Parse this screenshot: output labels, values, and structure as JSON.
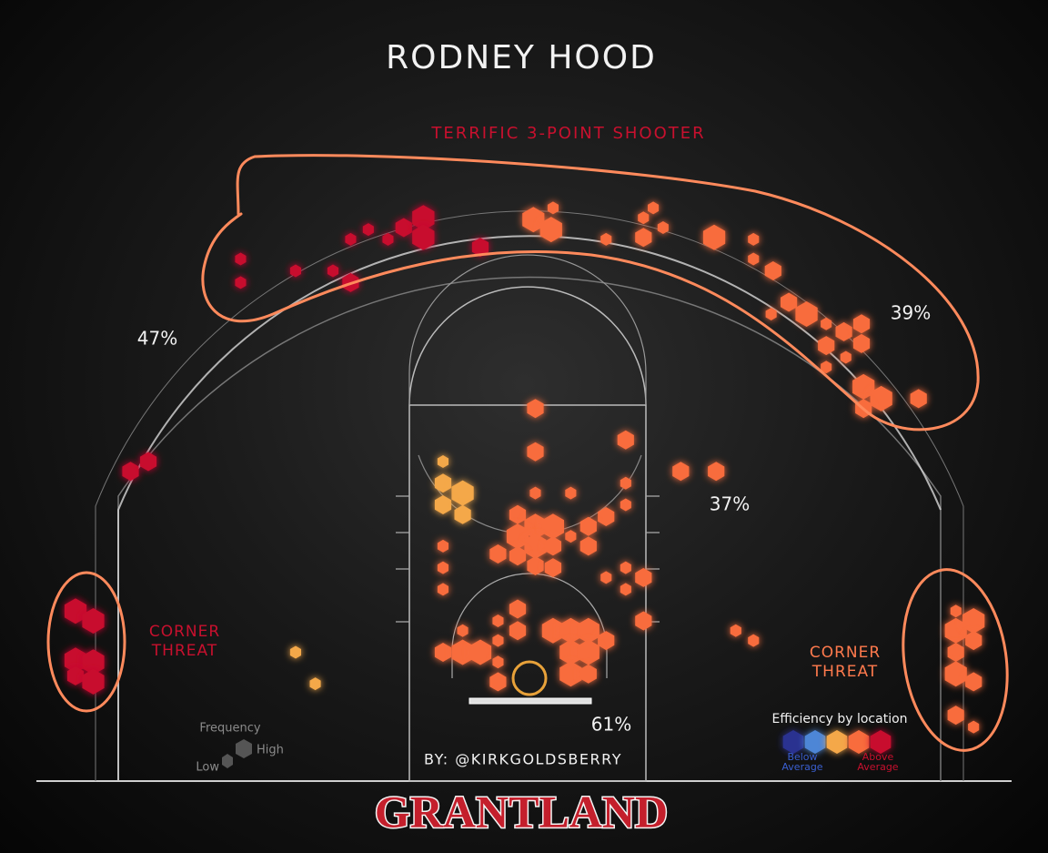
{
  "chart_data": {
    "type": "hexbin",
    "title": "RODNEY HOOD",
    "subtitle": {
      "text": "TERRIFIC 3-POINT SHOOTER",
      "color": "#c8102e"
    },
    "annotations": [
      {
        "text": "CORNER THREAT",
        "color": "#c8102e"
      },
      {
        "text": "CORNER THREAT",
        "color": "#ff7a4d"
      }
    ],
    "zones": {
      "values": [
        47,
        39,
        37,
        61
      ],
      "value_labels": [
        "47%",
        "39%",
        "37%",
        "61%"
      ]
    },
    "byline": "BY: @KIRKGOLDSBERRY",
    "brand": "GRANTLAND",
    "xlim": [
      -25,
      25
    ],
    "ylim": [
      -5.25,
      30
    ],
    "efficiency_legend": {
      "title": "Efficiency by location",
      "low": "Below Average",
      "high": "Above Average",
      "colors": [
        "#2c3190",
        "#4d86d6",
        "#f4a84a",
        "#f86c3c",
        "#c8102e"
      ]
    },
    "frequency_legend": {
      "title": "Frequency",
      "low": "Low",
      "high": "High"
    },
    "hexes": [
      {
        "x": -14.7,
        "y": 21.3,
        "size": 1,
        "level": 4
      },
      {
        "x": -14.7,
        "y": 20.1,
        "size": 1,
        "level": 4
      },
      {
        "x": -11.9,
        "y": 20.7,
        "size": 1,
        "level": 4
      },
      {
        "x": -10,
        "y": 20.7,
        "size": 1,
        "level": 4
      },
      {
        "x": -9.1,
        "y": 20.1,
        "size": 2,
        "level": 4
      },
      {
        "x": -9.1,
        "y": 22.3,
        "size": 1,
        "level": 4
      },
      {
        "x": -8.2,
        "y": 22.8,
        "size": 1,
        "level": 4
      },
      {
        "x": -7.2,
        "y": 22.3,
        "size": 1,
        "level": 4
      },
      {
        "x": -6.4,
        "y": 22.9,
        "size": 2,
        "level": 4
      },
      {
        "x": -5.4,
        "y": 23.4,
        "size": 3,
        "level": 4
      },
      {
        "x": -5.4,
        "y": 22.4,
        "size": 3,
        "level": 4
      },
      {
        "x": -2.5,
        "y": 21.9,
        "size": 2,
        "level": 4
      },
      {
        "x": -20.3,
        "y": 10.5,
        "size": 2,
        "level": 4
      },
      {
        "x": -19.4,
        "y": 11,
        "size": 2,
        "level": 4
      },
      {
        "x": -23.1,
        "y": 3.4,
        "size": 3,
        "level": 4
      },
      {
        "x": -22.2,
        "y": 2.9,
        "size": 3,
        "level": 4
      },
      {
        "x": -23.1,
        "y": 0.9,
        "size": 3,
        "level": 4
      },
      {
        "x": -22.2,
        "y": 0.8,
        "size": 3,
        "level": 4
      },
      {
        "x": -23.1,
        "y": 0.1,
        "size": 2,
        "level": 4
      },
      {
        "x": -22.2,
        "y": -0.2,
        "size": 3,
        "level": 4
      },
      {
        "x": 0.2,
        "y": 23.3,
        "size": 3,
        "level": 3
      },
      {
        "x": 1.1,
        "y": 22.8,
        "size": 3,
        "level": 3
      },
      {
        "x": 1.2,
        "y": 23.9,
        "size": 1,
        "level": 3
      },
      {
        "x": 3.9,
        "y": 22.3,
        "size": 1,
        "level": 3
      },
      {
        "x": 5.8,
        "y": 23.4,
        "size": 1,
        "level": 3
      },
      {
        "x": 6.3,
        "y": 23.9,
        "size": 1,
        "level": 3
      },
      {
        "x": 6.8,
        "y": 22.9,
        "size": 1,
        "level": 3
      },
      {
        "x": 5.8,
        "y": 22.4,
        "size": 2,
        "level": 3
      },
      {
        "x": 9.4,
        "y": 22.4,
        "size": 3,
        "level": 3
      },
      {
        "x": 11.4,
        "y": 22.3,
        "size": 1,
        "level": 3
      },
      {
        "x": 11.4,
        "y": 21.3,
        "size": 1,
        "level": 3
      },
      {
        "x": 12.4,
        "y": 20.7,
        "size": 2,
        "level": 3
      },
      {
        "x": 12.3,
        "y": 18.5,
        "size": 1,
        "level": 3
      },
      {
        "x": 13.2,
        "y": 19.1,
        "size": 2,
        "level": 3
      },
      {
        "x": 14.1,
        "y": 18.5,
        "size": 3,
        "level": 3
      },
      {
        "x": 15.1,
        "y": 18,
        "size": 1,
        "level": 3
      },
      {
        "x": 16,
        "y": 17.6,
        "size": 2,
        "level": 3
      },
      {
        "x": 16.9,
        "y": 18,
        "size": 2,
        "level": 3
      },
      {
        "x": 15.1,
        "y": 16.9,
        "size": 2,
        "level": 3
      },
      {
        "x": 16.9,
        "y": 17,
        "size": 2,
        "level": 3
      },
      {
        "x": 16.1,
        "y": 16.3,
        "size": 1,
        "level": 3
      },
      {
        "x": 15.1,
        "y": 15.8,
        "size": 1,
        "level": 3
      },
      {
        "x": 17,
        "y": 14.8,
        "size": 3,
        "level": 3
      },
      {
        "x": 17.9,
        "y": 14.2,
        "size": 3,
        "level": 3
      },
      {
        "x": 17,
        "y": 13.7,
        "size": 2,
        "level": 3
      },
      {
        "x": 19.8,
        "y": 14.2,
        "size": 2,
        "level": 3
      },
      {
        "x": 0.3,
        "y": 13.7,
        "size": 2,
        "level": 3
      },
      {
        "x": 4.9,
        "y": 12.1,
        "size": 2,
        "level": 3
      },
      {
        "x": 0.3,
        "y": 11.5,
        "size": 2,
        "level": 3
      },
      {
        "x": 7.7,
        "y": 10.5,
        "size": 2,
        "level": 3
      },
      {
        "x": 9.5,
        "y": 10.5,
        "size": 2,
        "level": 3
      },
      {
        "x": 0.3,
        "y": 9.4,
        "size": 1,
        "level": 3
      },
      {
        "x": 4.9,
        "y": 9.9,
        "size": 1,
        "level": 3
      },
      {
        "x": 2.1,
        "y": 9.4,
        "size": 1,
        "level": 3
      },
      {
        "x": 4.9,
        "y": 8.8,
        "size": 1,
        "level": 3
      },
      {
        "x": 3.9,
        "y": 8.2,
        "size": 2,
        "level": 3
      },
      {
        "x": 3,
        "y": 7.7,
        "size": 2,
        "level": 3
      },
      {
        "x": 2.1,
        "y": 7.2,
        "size": 1,
        "level": 3
      },
      {
        "x": 3,
        "y": 6.7,
        "size": 2,
        "level": 3
      },
      {
        "x": -0.6,
        "y": 8.3,
        "size": 2,
        "level": 3
      },
      {
        "x": 0.3,
        "y": 7.7,
        "size": 3,
        "level": 3
      },
      {
        "x": 1.2,
        "y": 7.7,
        "size": 3,
        "level": 3
      },
      {
        "x": -0.6,
        "y": 7.2,
        "size": 3,
        "level": 3
      },
      {
        "x": 0.3,
        "y": 6.7,
        "size": 3,
        "level": 3
      },
      {
        "x": 1.2,
        "y": 6.7,
        "size": 2,
        "level": 3
      },
      {
        "x": -1.6,
        "y": 6.3,
        "size": 2,
        "level": 3
      },
      {
        "x": -0.6,
        "y": 6.2,
        "size": 2,
        "level": 3
      },
      {
        "x": 0.3,
        "y": 5.7,
        "size": 2,
        "level": 3
      },
      {
        "x": 1.2,
        "y": 5.6,
        "size": 2,
        "level": 3
      },
      {
        "x": -4.4,
        "y": 6.7,
        "size": 1,
        "level": 3
      },
      {
        "x": -4.4,
        "y": 5.6,
        "size": 1,
        "level": 3
      },
      {
        "x": -4.4,
        "y": 4.5,
        "size": 1,
        "level": 3
      },
      {
        "x": 4.9,
        "y": 5.6,
        "size": 1,
        "level": 3
      },
      {
        "x": 3.9,
        "y": 5.1,
        "size": 1,
        "level": 3
      },
      {
        "x": 5.8,
        "y": 5.1,
        "size": 2,
        "level": 3
      },
      {
        "x": 4.9,
        "y": 4.5,
        "size": 1,
        "level": 3
      },
      {
        "x": 5.8,
        "y": 2.9,
        "size": 2,
        "level": 3
      },
      {
        "x": 10.5,
        "y": 2.4,
        "size": 1,
        "level": 3
      },
      {
        "x": 11.4,
        "y": 1.9,
        "size": 1,
        "level": 3
      },
      {
        "x": -4.4,
        "y": 11,
        "size": 1,
        "level": 2
      },
      {
        "x": -4.4,
        "y": 9.9,
        "size": 2,
        "level": 2
      },
      {
        "x": -3.4,
        "y": 9.4,
        "size": 3,
        "level": 2
      },
      {
        "x": -4.4,
        "y": 8.8,
        "size": 2,
        "level": 2
      },
      {
        "x": -3.4,
        "y": 8.3,
        "size": 2,
        "level": 2
      },
      {
        "x": -11.9,
        "y": 1.3,
        "size": 1,
        "level": 2
      },
      {
        "x": -10.9,
        "y": -0.3,
        "size": 1,
        "level": 2
      },
      {
        "x": -0.6,
        "y": 3.5,
        "size": 2,
        "level": 3
      },
      {
        "x": -1.6,
        "y": 2.9,
        "size": 1,
        "level": 3
      },
      {
        "x": -0.6,
        "y": 2.4,
        "size": 2,
        "level": 3
      },
      {
        "x": 1.2,
        "y": 2.4,
        "size": 3,
        "level": 3
      },
      {
        "x": 2.1,
        "y": 2.4,
        "size": 3,
        "level": 3
      },
      {
        "x": 3,
        "y": 2.4,
        "size": 3,
        "level": 3
      },
      {
        "x": 3.9,
        "y": 1.9,
        "size": 2,
        "level": 3
      },
      {
        "x": -4.4,
        "y": 1.3,
        "size": 2,
        "level": 3
      },
      {
        "x": -3.4,
        "y": 1.3,
        "size": 3,
        "level": 3
      },
      {
        "x": -2.5,
        "y": 1.3,
        "size": 3,
        "level": 3
      },
      {
        "x": -1.6,
        "y": 1.9,
        "size": 1,
        "level": 3
      },
      {
        "x": -3.4,
        "y": 2.4,
        "size": 1,
        "level": 3
      },
      {
        "x": -1.6,
        "y": 0.8,
        "size": 1,
        "level": 3
      },
      {
        "x": 2.1,
        "y": 1.3,
        "size": 3,
        "level": 3
      },
      {
        "x": 3,
        "y": 1.3,
        "size": 3,
        "level": 3
      },
      {
        "x": 2.1,
        "y": 0.2,
        "size": 3,
        "level": 3
      },
      {
        "x": 3,
        "y": 0.2,
        "size": 2,
        "level": 3
      },
      {
        "x": -1.6,
        "y": -0.2,
        "size": 2,
        "level": 3
      },
      {
        "x": 21.7,
        "y": 3.4,
        "size": 1,
        "level": 3
      },
      {
        "x": 21.7,
        "y": 2.4,
        "size": 3,
        "level": 3
      },
      {
        "x": 22.6,
        "y": 2.9,
        "size": 3,
        "level": 3
      },
      {
        "x": 22.6,
        "y": 1.9,
        "size": 2,
        "level": 3
      },
      {
        "x": 21.7,
        "y": 1.3,
        "size": 2,
        "level": 3
      },
      {
        "x": 21.7,
        "y": 0.2,
        "size": 3,
        "level": 3
      },
      {
        "x": 22.6,
        "y": -0.2,
        "size": 2,
        "level": 3
      },
      {
        "x": 21.7,
        "y": -1.9,
        "size": 2,
        "level": 3
      },
      {
        "x": 22.6,
        "y": -2.5,
        "size": 1,
        "level": 3
      }
    ]
  }
}
